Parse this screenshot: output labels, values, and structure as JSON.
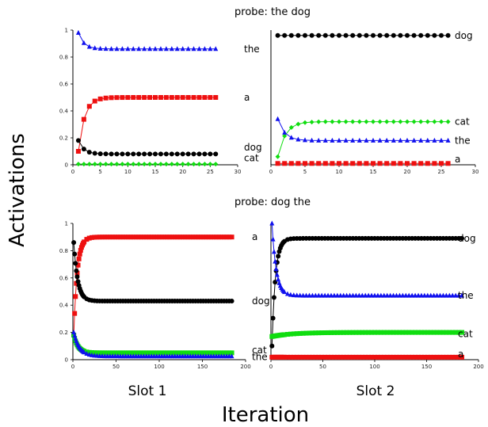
{
  "figure": {
    "xlabel": "Iteration",
    "ylabel": "Activations",
    "slot_labels": [
      "Slot 1",
      "Slot 2"
    ],
    "row_titles": [
      "probe: the dog",
      "probe: dog the"
    ]
  },
  "colors": {
    "the": "#1010ee",
    "a": "#ee1010",
    "dog": "#000000",
    "cat": "#10dd10"
  },
  "chart_data": [
    {
      "id": "top-left",
      "type": "line",
      "row": 0,
      "col": 0,
      "xlim": [
        0,
        30
      ],
      "ylim": [
        0,
        1
      ],
      "xticks": [
        "0",
        "5",
        "10",
        "15",
        "20",
        "25",
        "30"
      ],
      "yticks": [
        "0",
        "0.2",
        "0.4",
        "0.6",
        "0.8",
        "1"
      ],
      "xnum": 26,
      "series": [
        {
          "name": "the",
          "marker": "triangle",
          "curve": {
            "kind": "decay",
            "start": 0.98,
            "end": 0.86,
            "k": 1.0
          }
        },
        {
          "name": "a",
          "marker": "square",
          "curve": {
            "kind": "rise",
            "start": 0.1,
            "end": 0.5,
            "k": 0.9
          }
        },
        {
          "name": "dog",
          "marker": "circle",
          "curve": {
            "kind": "decay",
            "start": 0.18,
            "end": 0.08,
            "k": 1.0
          }
        },
        {
          "name": "cat",
          "marker": "diamond",
          "curve": {
            "kind": "flat",
            "value": 0.005
          }
        }
      ],
      "labels": [
        {
          "text": "the",
          "y": 0.86
        },
        {
          "text": "a",
          "y": 0.5
        },
        {
          "text": "dog",
          "y": 0.13
        },
        {
          "text": "cat",
          "y": 0.05
        }
      ]
    },
    {
      "id": "top-right",
      "type": "line",
      "row": 0,
      "col": 1,
      "xlim": [
        0,
        30
      ],
      "ylim": [
        0,
        1
      ],
      "xticks": [
        "0",
        "5",
        "10",
        "15",
        "20",
        "25",
        "30"
      ],
      "yticks": [],
      "xnum": 26,
      "series": [
        {
          "name": "dog",
          "marker": "circle",
          "curve": {
            "kind": "flat",
            "value": 0.96
          }
        },
        {
          "name": "cat",
          "marker": "diamond",
          "curve": {
            "kind": "rise",
            "start": 0.06,
            "end": 0.32,
            "k": 0.9
          }
        },
        {
          "name": "the",
          "marker": "triangle",
          "curve": {
            "kind": "decay",
            "start": 0.34,
            "end": 0.18,
            "k": 1.0
          }
        },
        {
          "name": "a",
          "marker": "square",
          "curve": {
            "kind": "flat",
            "value": 0.01
          }
        }
      ],
      "labels": [
        {
          "text": "dog",
          "y": 0.96
        },
        {
          "text": "cat",
          "y": 0.32
        },
        {
          "text": "the",
          "y": 0.18
        },
        {
          "text": "a",
          "y": 0.04
        }
      ]
    },
    {
      "id": "bottom-left",
      "type": "line",
      "row": 1,
      "col": 0,
      "xlim": [
        0,
        200
      ],
      "ylim": [
        0,
        1
      ],
      "xticks": [
        "0",
        "50",
        "100",
        "150",
        "200"
      ],
      "yticks": [
        "0",
        "0.2",
        "0.4",
        "0.6",
        "0.8",
        "1"
      ],
      "xnum": 185,
      "series": [
        {
          "name": "a",
          "marker": "square",
          "curve": {
            "kind": "rise",
            "start": 0.18,
            "end": 0.9,
            "k": 0.25
          }
        },
        {
          "name": "dog",
          "marker": "circle",
          "curve": {
            "kind": "decay",
            "start": 0.86,
            "end": 0.43,
            "k": 0.22
          }
        },
        {
          "name": "cat",
          "marker": "square",
          "curve": {
            "kind": "decay",
            "start": 0.18,
            "end": 0.05,
            "k": 0.2
          }
        },
        {
          "name": "the",
          "marker": "triangle",
          "curve": {
            "kind": "decay",
            "start": 0.2,
            "end": 0.025,
            "k": 0.15
          }
        }
      ],
      "labels": [
        {
          "text": "a",
          "y": 0.9
        },
        {
          "text": "dog",
          "y": 0.43
        },
        {
          "text": "cat",
          "y": 0.07
        },
        {
          "text": "the",
          "y": 0.02
        }
      ]
    },
    {
      "id": "bottom-right",
      "type": "line",
      "row": 1,
      "col": 1,
      "xlim": [
        0,
        200
      ],
      "ylim": [
        0,
        1
      ],
      "xticks": [
        "0",
        "50",
        "100",
        "150",
        "200"
      ],
      "yticks": [],
      "xnum": 185,
      "series": [
        {
          "name": "dog",
          "marker": "circle",
          "curve": {
            "kind": "rise",
            "start": 0.1,
            "end": 0.89,
            "k": 0.3
          }
        },
        {
          "name": "the",
          "marker": "triangle",
          "curve": {
            "kind": "decay",
            "start": 1.0,
            "end": 0.47,
            "k": 0.25
          }
        },
        {
          "name": "cat",
          "marker": "square",
          "curve": {
            "kind": "rise",
            "start": 0.17,
            "end": 0.2,
            "k": 0.05
          }
        },
        {
          "name": "a",
          "marker": "square",
          "curve": {
            "kind": "flat",
            "value": 0.018
          }
        }
      ],
      "labels": [
        {
          "text": "dog",
          "y": 0.89
        },
        {
          "text": "the",
          "y": 0.47
        },
        {
          "text": "cat",
          "y": 0.19
        },
        {
          "text": "a",
          "y": 0.04
        }
      ]
    }
  ]
}
